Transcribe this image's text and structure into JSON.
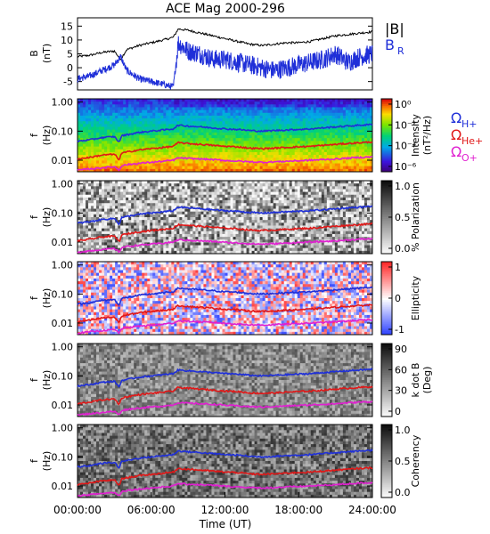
{
  "title": "ACE Mag 2000-296",
  "x_axis": {
    "title": "Time (UT)",
    "ticks": [
      "00:00:00",
      "06:00:00",
      "12:00:00",
      "18:00:00",
      "24:00:00"
    ]
  },
  "mag_panel": {
    "ylabel": "B",
    "yunit": "(nT)",
    "yticks": [
      "15",
      "10",
      "5",
      "0",
      "-5"
    ],
    "legend": {
      "B": "|B|",
      "BR_main": "B",
      "BR_sub": "R"
    },
    "colors": {
      "B": "#000000",
      "BR": "#1f2fd8"
    }
  },
  "freq_ticks": [
    "1.00",
    "0.10",
    "0.01"
  ],
  "freq_label": {
    "f": "f",
    "unit": "(Hz)"
  },
  "gyro_legend": [
    {
      "main": "Ω",
      "sub": "H+",
      "color": "#1f2fd8"
    },
    {
      "main": "Ω",
      "sub": "He+",
      "color": "#e01818"
    },
    {
      "main": "Ω",
      "sub": "O+",
      "color": "#e020d0"
    }
  ],
  "panels": [
    {
      "id": "intensity",
      "colorbar_label": "Intensity",
      "colorbar_unit": "(nT²/Hz)",
      "colorbar_ticks": [
        "10⁰",
        "10⁻²",
        "10⁻⁴",
        "10⁻⁶"
      ],
      "colormap": "rainbow"
    },
    {
      "id": "polarization",
      "colorbar_label": "% Polarization",
      "colorbar_unit": "",
      "colorbar_ticks": [
        "1.0",
        "0.5",
        "0.0"
      ],
      "colormap": "gray"
    },
    {
      "id": "ellipticity",
      "colorbar_label": "Ellipticity",
      "colorbar_unit": "",
      "colorbar_ticks": [
        "1",
        "0",
        "-1"
      ],
      "colormap": "bwr"
    },
    {
      "id": "kdotb",
      "colorbar_label": "k dot B",
      "colorbar_unit": "(Deg)",
      "colorbar_ticks": [
        "90",
        "60",
        "30",
        "0"
      ],
      "colormap": "gray"
    },
    {
      "id": "coherency",
      "colorbar_label": "Coherency",
      "colorbar_unit": "",
      "colorbar_ticks": [
        "1.0",
        "0.5",
        "0.0"
      ],
      "colormap": "gray"
    }
  ],
  "chart_data": [
    {
      "type": "line",
      "title": "ACE Mag 2000-296",
      "xlabel": "Time (UT)",
      "ylabel": "B (nT)",
      "xlim": [
        0,
        24
      ],
      "ylim": [
        -8,
        18
      ],
      "series": [
        {
          "name": "|B|",
          "color": "#000000",
          "x": [
            0,
            1,
            2,
            3,
            3.5,
            4,
            5,
            6,
            7,
            7.8,
            8.2,
            9,
            10,
            11,
            12,
            13,
            14,
            15,
            16,
            17,
            18,
            19,
            20,
            21,
            22,
            23,
            24
          ],
          "y": [
            4,
            4.5,
            5.5,
            6,
            3,
            6.5,
            8,
            9,
            10,
            11,
            14,
            13.5,
            12.5,
            11.5,
            10.5,
            9.5,
            8.5,
            8,
            8.5,
            9,
            9,
            9.5,
            10.5,
            11.5,
            12,
            12.5,
            13
          ]
        },
        {
          "name": "BR",
          "color": "#1f2fd8",
          "x": [
            0,
            1,
            2,
            3,
            3.5,
            4,
            5,
            6,
            7,
            7.8,
            8.2,
            9,
            10,
            11,
            12,
            13,
            14,
            15,
            16,
            17,
            18,
            19,
            20,
            21,
            22,
            23,
            24
          ],
          "y": [
            -4,
            -3,
            -1,
            1,
            4,
            -1,
            -4,
            -5,
            -6,
            -7,
            9,
            6,
            5,
            3,
            3,
            2,
            1,
            0,
            -1,
            0,
            1,
            2,
            3,
            5,
            2,
            4,
            5
          ]
        }
      ]
    },
    {
      "type": "heatmap",
      "title": "Intensity",
      "xlabel": "Time (UT)",
      "ylabel": "f (Hz)",
      "xlim": [
        0,
        24
      ],
      "ylim": [
        0.004,
        1.3
      ],
      "colorbar_range": [
        1e-06,
        1
      ],
      "series": [
        {
          "name": "ΩH+",
          "color": "#1f2fd8",
          "x": [
            0,
            1,
            2,
            3,
            3.4,
            3.6,
            4,
            5,
            6,
            7,
            7.8,
            8.2,
            9,
            10,
            11,
            12,
            13,
            14,
            15,
            16,
            17,
            18,
            19,
            20,
            21,
            22,
            23,
            24
          ],
          "y": [
            0.045,
            0.05,
            0.06,
            0.065,
            0.04,
            0.07,
            0.075,
            0.09,
            0.1,
            0.11,
            0.12,
            0.16,
            0.15,
            0.14,
            0.13,
            0.12,
            0.115,
            0.105,
            0.1,
            0.105,
            0.11,
            0.115,
            0.12,
            0.13,
            0.14,
            0.15,
            0.16,
            0.17
          ]
        },
        {
          "name": "ΩHe+",
          "color": "#e01818",
          "x": [
            0,
            1,
            2,
            3,
            3.4,
            3.6,
            4,
            5,
            6,
            7,
            7.8,
            8.2,
            9,
            10,
            11,
            12,
            13,
            14,
            15,
            16,
            17,
            18,
            19,
            20,
            21,
            22,
            23,
            24
          ],
          "y": [
            0.011,
            0.0125,
            0.015,
            0.016,
            0.01,
            0.0175,
            0.019,
            0.0225,
            0.025,
            0.0275,
            0.03,
            0.04,
            0.0375,
            0.035,
            0.0325,
            0.03,
            0.029,
            0.026,
            0.025,
            0.026,
            0.0275,
            0.029,
            0.03,
            0.0325,
            0.035,
            0.0375,
            0.04,
            0.0425
          ]
        },
        {
          "name": "ΩO+",
          "color": "#e020d0",
          "x": [
            0,
            1,
            2,
            3,
            3.4,
            3.6,
            4,
            5,
            6,
            7,
            7.8,
            8.2,
            9,
            10,
            11,
            12,
            13,
            14,
            15,
            16,
            17,
            18,
            19,
            20,
            21,
            22,
            23,
            24
          ],
          "y": [
            0.0045,
            0.005,
            0.0055,
            0.006,
            0.0045,
            0.0065,
            0.007,
            0.0078,
            0.0085,
            0.0092,
            0.01,
            0.012,
            0.0115,
            0.011,
            0.0105,
            0.0098,
            0.0093,
            0.0088,
            0.0085,
            0.0088,
            0.0092,
            0.0096,
            0.01,
            0.0105,
            0.011,
            0.0118,
            0.0125,
            0.013
          ]
        }
      ]
    },
    {
      "type": "heatmap",
      "title": "% Polarization",
      "xlabel": "Time (UT)",
      "ylabel": "f (Hz)",
      "xlim": [
        0,
        24
      ],
      "ylim": [
        0.004,
        1.3
      ],
      "colorbar_range": [
        0,
        1
      ]
    },
    {
      "type": "heatmap",
      "title": "Ellipticity",
      "xlabel": "Time (UT)",
      "ylabel": "f (Hz)",
      "xlim": [
        0,
        24
      ],
      "ylim": [
        0.004,
        1.3
      ],
      "colorbar_range": [
        -1,
        1
      ]
    },
    {
      "type": "heatmap",
      "title": "k dot B",
      "xlabel": "Time (UT)",
      "ylabel": "f (Hz)",
      "xlim": [
        0,
        24
      ],
      "ylim": [
        0.004,
        1.3
      ],
      "colorbar_range": [
        0,
        90
      ]
    },
    {
      "type": "heatmap",
      "title": "Coherency",
      "xlabel": "Time (UT)",
      "ylabel": "f (Hz)",
      "xlim": [
        0,
        24
      ],
      "ylim": [
        0.004,
        1.3
      ],
      "colorbar_range": [
        0,
        1
      ]
    }
  ]
}
